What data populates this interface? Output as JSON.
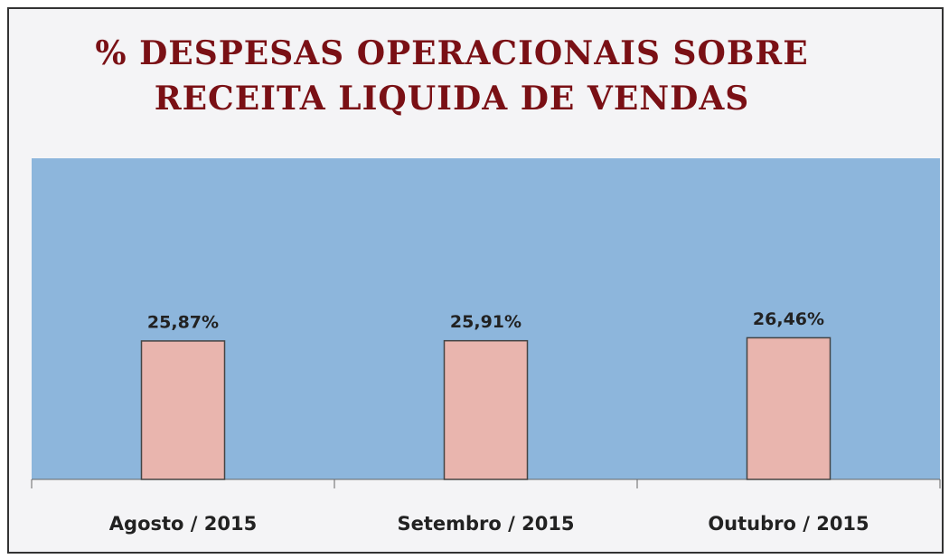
{
  "chart_data": {
    "type": "bar",
    "title": "% DESPESAS OPERACIONAIS SOBRE\nRECEITA LIQUIDA DE VENDAS",
    "categories": [
      "Agosto / 2015",
      "Setembro / 2015",
      "Outubro / 2015"
    ],
    "values": [
      25.87,
      25.91,
      26.46
    ],
    "value_labels": [
      "25,87%",
      "25,91%",
      "26,46%"
    ],
    "color": "#e9b5ae",
    "ylim": [
      0,
      60
    ]
  }
}
